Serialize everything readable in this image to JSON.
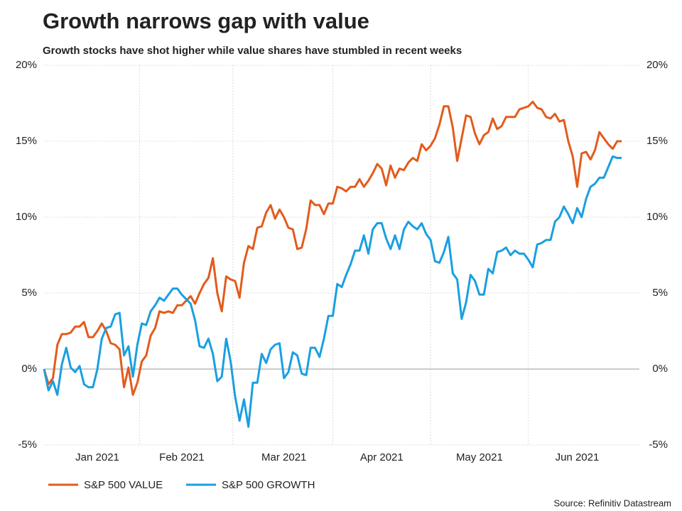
{
  "chart_data": {
    "type": "line",
    "title": "Growth narrows gap with value",
    "subtitle": "Growth stocks have shot higher while value shares have stumbled in recent weeks",
    "source": "Source: Refinitiv Datastream",
    "categories": [
      null,
      null,
      null,
      null,
      null,
      null,
      null,
      null,
      null,
      null,
      null,
      null,
      "Jan 2021",
      null,
      null,
      null,
      null,
      null,
      null,
      null,
      null,
      null,
      null,
      null,
      null,
      null,
      null,
      null,
      null,
      null,
      null,
      "Feb 2021",
      null,
      null,
      null,
      null,
      null,
      null,
      null,
      null,
      null,
      null,
      null,
      null,
      null,
      null,
      null,
      null,
      null,
      null,
      null,
      null,
      null,
      null,
      "Mar 2021",
      null,
      null,
      null,
      null,
      null,
      null,
      null,
      null,
      null,
      null,
      null,
      null,
      null,
      null,
      null,
      null,
      null,
      null,
      null,
      null,
      null,
      "Apr 2021",
      null,
      null,
      null,
      null,
      null,
      null,
      null,
      null,
      null,
      null,
      null,
      null,
      null,
      null,
      null,
      null,
      null,
      null,
      null,
      null,
      null,
      "May 2021",
      null,
      null,
      null,
      null,
      null,
      null,
      null,
      null,
      null,
      null,
      null,
      null,
      null,
      null,
      null,
      null,
      null,
      null,
      null,
      null,
      null,
      "Jun 2021",
      null,
      null,
      null,
      null,
      null,
      null,
      null,
      null,
      null,
      null
    ],
    "series": [
      {
        "name": "S&P 500 VALUE",
        "color": "#e35b1c",
        "values": [
          0,
          -1.0,
          -0.6,
          1.6,
          2.3,
          2.3,
          2.4,
          2.8,
          2.8,
          3.1,
          2.1,
          2.1,
          2.5,
          3.0,
          2.5,
          1.7,
          1.6,
          1.3,
          -1.2,
          0.1,
          -1.7,
          -0.9,
          0.5,
          0.9,
          2.2,
          2.7,
          3.8,
          3.7,
          3.8,
          3.7,
          4.2,
          4.2,
          4.5,
          4.8,
          4.3,
          5.0,
          5.6,
          6.0,
          7.3,
          5.0,
          3.8,
          6.1,
          5.9,
          5.8,
          4.7,
          7.0,
          8.1,
          7.9,
          9.3,
          9.4,
          10.3,
          10.8,
          9.9,
          10.5,
          10.0,
          9.3,
          9.2,
          7.9,
          8.0,
          9.2,
          11.1,
          10.8,
          10.8,
          10.2,
          10.9,
          10.9,
          12.0,
          11.9,
          11.7,
          12.0,
          12.0,
          12.5,
          12.0,
          12.4,
          12.9,
          13.5,
          13.2,
          12.1,
          13.4,
          12.6,
          13.2,
          13.1,
          13.6,
          13.9,
          13.7,
          14.8,
          14.4,
          14.7,
          15.2,
          16.1,
          17.3,
          17.3,
          15.9,
          13.7,
          15.2,
          16.7,
          16.6,
          15.5,
          14.8,
          15.4,
          15.6,
          16.5,
          15.8,
          16.0,
          16.6,
          16.6,
          16.6,
          17.1,
          17.2,
          17.3,
          17.6,
          17.2,
          17.1,
          16.6,
          16.5,
          16.8,
          16.3,
          16.4,
          15.0,
          14.0,
          12.0,
          14.2,
          14.3,
          13.8,
          14.4,
          15.6,
          15.2,
          14.8,
          14.5,
          15.0,
          15.0
        ]
      },
      {
        "name": "S&P 500 GROWTH",
        "color": "#1a9fe0",
        "values": [
          0,
          -1.4,
          -0.8,
          -1.7,
          0.3,
          1.4,
          0.1,
          -0.2,
          0.2,
          -1.0,
          -1.2,
          -1.2,
          0,
          2.0,
          2.7,
          2.8,
          3.6,
          3.7,
          0.9,
          1.5,
          -0.5,
          1.6,
          3.0,
          2.9,
          3.8,
          4.2,
          4.7,
          4.5,
          4.9,
          5.3,
          5.3,
          4.9,
          4.6,
          4.3,
          3.2,
          1.5,
          1.4,
          2.0,
          1.0,
          -0.8,
          -0.5,
          2.0,
          0.5,
          -1.8,
          -3.4,
          -2.0,
          -3.8,
          -0.9,
          -0.9,
          1.0,
          0.4,
          1.3,
          1.6,
          1.7,
          -0.6,
          -0.2,
          1.1,
          0.9,
          -0.3,
          -0.4,
          1.4,
          1.4,
          0.8,
          2.0,
          3.5,
          3.5,
          5.6,
          5.4,
          6.2,
          6.9,
          7.8,
          7.8,
          8.8,
          7.6,
          9.2,
          9.6,
          9.6,
          8.6,
          7.9,
          8.8,
          7.9,
          9.2,
          9.7,
          9.4,
          9.2,
          9.6,
          8.9,
          8.5,
          7.1,
          7.0,
          7.7,
          8.7,
          6.3,
          5.9,
          3.3,
          4.4,
          6.2,
          5.8,
          4.9,
          4.9,
          6.6,
          6.3,
          7.7,
          7.8,
          8.0,
          7.5,
          7.8,
          7.6,
          7.6,
          7.2,
          6.7,
          8.2,
          8.3,
          8.5,
          8.5,
          9.7,
          10.0,
          10.7,
          10.2,
          9.6,
          10.6,
          10.0,
          11.2,
          12.0,
          12.2,
          12.6,
          12.6,
          13.3,
          14.0,
          13.9,
          13.9
        ]
      }
    ],
    "ylim": [
      -5,
      20
    ],
    "yticks": [
      {
        "value": -5,
        "label": "-5%"
      },
      {
        "value": 0,
        "label": "0%"
      },
      {
        "value": 5,
        "label": "5%"
      },
      {
        "value": 10,
        "label": "10%"
      },
      {
        "value": 15,
        "label": "15%"
      },
      {
        "value": 20,
        "label": "20%"
      }
    ],
    "y2lim": [
      -5,
      20
    ],
    "y2ticks": [
      {
        "value": -5,
        "label": "-5%"
      },
      {
        "value": 0,
        "label": "0%"
      },
      {
        "value": 5,
        "label": "5%"
      },
      {
        "value": 10,
        "label": "10%"
      },
      {
        "value": 15,
        "label": "15%"
      },
      {
        "value": 20,
        "label": "20%"
      }
    ],
    "grid": true
  }
}
